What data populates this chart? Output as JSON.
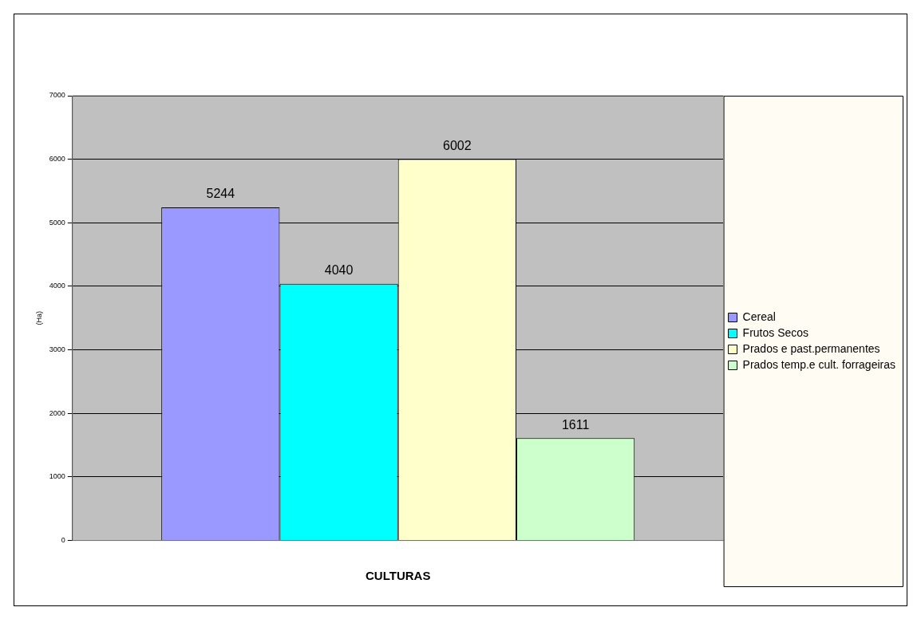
{
  "chart_data": {
    "type": "bar",
    "xlabel": "CULTURAS",
    "ylabel": "(Ha)",
    "categories": [
      null
    ],
    "series": [
      {
        "name": "Cereal",
        "color": "#9999ff",
        "values": [
          5244
        ]
      },
      {
        "name": "Frutos Secos",
        "color": "#00ffff",
        "values": [
          4040
        ]
      },
      {
        "name": "Prados e past.permanentes",
        "color": "#ffffcc",
        "values": [
          6002
        ]
      },
      {
        "name": "Prados temp.e cult. forrageiras",
        "color": "#ccffcc",
        "values": [
          1611
        ]
      }
    ],
    "ylim": [
      0,
      7000
    ],
    "yticks": [
      0,
      1000,
      2000,
      3000,
      4000,
      5000,
      6000,
      7000
    ],
    "grid": "y",
    "legend": "right",
    "data_labels": true
  }
}
